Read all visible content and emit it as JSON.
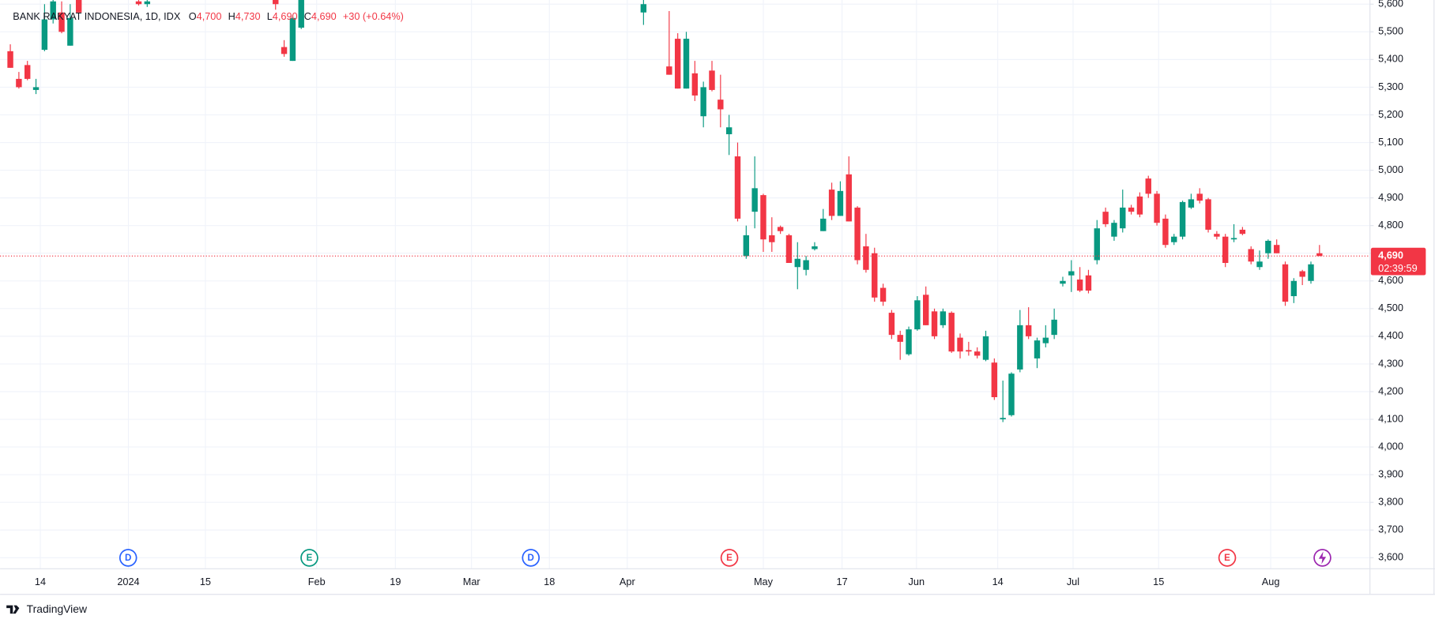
{
  "chart_data": {
    "type": "candlestick",
    "title": "BANK RAKYAT INDONESIA, 1D, IDX",
    "ohlc_legend": [
      {
        "key": "O",
        "value": "4,700"
      },
      {
        "key": "H",
        "value": "4,730"
      },
      {
        "key": "L",
        "value": "4,690"
      },
      {
        "key": "C",
        "value": "4,690"
      }
    ],
    "change": "+30 (+0.64%)",
    "up_color": "#089981",
    "down_color": "#f23645",
    "grid": true,
    "x": [
      0,
      1,
      2,
      3,
      4,
      5,
      6,
      7,
      8,
      15,
      16,
      31,
      32,
      33,
      34,
      74,
      77,
      78,
      79,
      80,
      81,
      82,
      83,
      84,
      85,
      86,
      87,
      88,
      89,
      90,
      91,
      92,
      93,
      94,
      95,
      96,
      97,
      98,
      99,
      100,
      101,
      102,
      103,
      104,
      105,
      106,
      107,
      108,
      109,
      110,
      111,
      112,
      113,
      114,
      115,
      116,
      117,
      118,
      119,
      120,
      121,
      122,
      123,
      124,
      125,
      126,
      127,
      128,
      129,
      130,
      131,
      132,
      133,
      134,
      135,
      136,
      137,
      138,
      139,
      140,
      141,
      142,
      143,
      144,
      145,
      146,
      147,
      148,
      149,
      150,
      151,
      152,
      153
    ],
    "open": [
      5430,
      5330,
      5380,
      5290,
      5435,
      5545,
      5570,
      5450,
      5640,
      5610,
      5600,
      5640,
      5445,
      5395,
      5515,
      5570,
      5375,
      5475,
      5295,
      5350,
      5195,
      5360,
      5255,
      5130,
      5050,
      4690,
      4850,
      4910,
      4765,
      4795,
      4765,
      4650,
      4640,
      4715,
      4780,
      4930,
      4835,
      4985,
      4865,
      4725,
      4700,
      4575,
      4485,
      4405,
      4335,
      4425,
      4550,
      4490,
      4440,
      4485,
      4395,
      4350,
      4345,
      4315,
      4305,
      4100,
      4115,
      4280,
      4440,
      4320,
      4375,
      4405,
      4590,
      4620,
      4605,
      4620,
      4675,
      4850,
      4760,
      4790,
      4865,
      4905,
      4970,
      4915,
      4825,
      4740,
      4760,
      4865,
      4915,
      4895,
      4770,
      4760,
      4750,
      4785,
      4715,
      4650,
      4700,
      4730,
      4660,
      4545,
      4635,
      4600,
      4700
    ],
    "high": [
      5455,
      5355,
      5395,
      5330,
      5600,
      5660,
      5610,
      5600,
      5660,
      5640,
      5630,
      5660,
      5470,
      5560,
      5640,
      5620,
      5575,
      5495,
      5500,
      5395,
      5320,
      5395,
      5345,
      5200,
      5100,
      4800,
      5050,
      4915,
      4830,
      4800,
      4770,
      4740,
      4690,
      4740,
      4860,
      4955,
      4960,
      5050,
      4870,
      4770,
      4720,
      4590,
      4495,
      4420,
      4435,
      4545,
      4580,
      4500,
      4500,
      4490,
      4410,
      4380,
      4360,
      4420,
      4320,
      4240,
      4270,
      4495,
      4505,
      4395,
      4440,
      4500,
      4615,
      4675,
      4650,
      4640,
      4820,
      4865,
      4820,
      4930,
      4875,
      4920,
      4980,
      4925,
      4840,
      4770,
      4890,
      4915,
      4935,
      4900,
      4780,
      4770,
      4805,
      4795,
      4725,
      4710,
      4750,
      4750,
      4670,
      4610,
      4640,
      4670,
      4730
    ],
    "low": [
      5370,
      5295,
      5325,
      5275,
      5430,
      5530,
      5495,
      5450,
      5570,
      5595,
      5590,
      5580,
      5410,
      5395,
      5510,
      5525,
      5345,
      5295,
      5295,
      5250,
      5155,
      5285,
      5155,
      5055,
      4815,
      4680,
      4790,
      4705,
      4705,
      4770,
      4665,
      4570,
      4620,
      4710,
      4780,
      4820,
      4835,
      4815,
      4660,
      4630,
      4525,
      4510,
      4390,
      4315,
      4330,
      4420,
      4440,
      4390,
      4430,
      4340,
      4320,
      4330,
      4320,
      4310,
      4170,
      4090,
      4110,
      4270,
      4390,
      4285,
      4360,
      4390,
      4580,
      4560,
      4560,
      4555,
      4660,
      4795,
      4745,
      4775,
      4840,
      4830,
      4900,
      4800,
      4720,
      4730,
      4750,
      4860,
      4880,
      4775,
      4750,
      4650,
      4740,
      4765,
      4660,
      4640,
      4680,
      4700,
      4510,
      4520,
      4585,
      4590,
      4690
    ],
    "close": [
      5370,
      5300,
      5330,
      5300,
      5545,
      5610,
      5500,
      5550,
      5570,
      5600,
      5610,
      5600,
      5420,
      5550,
      5620,
      5600,
      5345,
      5295,
      5475,
      5270,
      5300,
      5290,
      5220,
      5155,
      4825,
      4765,
      4935,
      4750,
      4740,
      4780,
      4665,
      4680,
      4675,
      4725,
      4825,
      4835,
      4925,
      4815,
      4675,
      4640,
      4540,
      4525,
      4405,
      4380,
      4425,
      4530,
      4440,
      4400,
      4490,
      4345,
      4345,
      4345,
      4330,
      4400,
      4180,
      4105,
      4265,
      4440,
      4400,
      4385,
      4395,
      4460,
      4600,
      4635,
      4565,
      4565,
      4790,
      4805,
      4810,
      4865,
      4850,
      4840,
      4915,
      4810,
      4730,
      4760,
      4885,
      4895,
      4890,
      4785,
      4760,
      4665,
      4755,
      4770,
      4670,
      4670,
      4745,
      4700,
      4525,
      4600,
      4615,
      4660,
      4690
    ],
    "xlim": [
      -1.2,
      158.9
    ],
    "xticks": [
      {
        "value": 3.5,
        "label": "14"
      },
      {
        "value": 13.8,
        "label": "2024"
      },
      {
        "value": 22.8,
        "label": "15"
      },
      {
        "value": 35.8,
        "label": "Feb"
      },
      {
        "value": 45.0,
        "label": "19"
      },
      {
        "value": 53.9,
        "label": "Mar"
      },
      {
        "value": 63.0,
        "label": "18"
      },
      {
        "value": 72.1,
        "label": "Apr"
      },
      {
        "value": 88.0,
        "label": "May"
      },
      {
        "value": 97.2,
        "label": "17"
      },
      {
        "value": 105.9,
        "label": "Jun"
      },
      {
        "value": 115.4,
        "label": "14"
      },
      {
        "value": 124.2,
        "label": "Jul"
      },
      {
        "value": 134.2,
        "label": "15"
      },
      {
        "value": 147.3,
        "label": "Aug"
      }
    ],
    "ylim": [
      3560,
      5615
    ],
    "yticks": [
      {
        "value": 3600,
        "label": "3,600"
      },
      {
        "value": 3700,
        "label": "3,700"
      },
      {
        "value": 3800,
        "label": "3,800"
      },
      {
        "value": 3900,
        "label": "3,900"
      },
      {
        "value": 4000,
        "label": "4,000"
      },
      {
        "value": 4100,
        "label": "4,100"
      },
      {
        "value": 4200,
        "label": "4,200"
      },
      {
        "value": 4300,
        "label": "4,300"
      },
      {
        "value": 4400,
        "label": "4,400"
      },
      {
        "value": 4500,
        "label": "4,500"
      },
      {
        "value": 4600,
        "label": "4,600"
      },
      {
        "value": 4700,
        "label": "4,700"
      },
      {
        "value": 4800,
        "label": "4,800"
      },
      {
        "value": 4900,
        "label": "4,900"
      },
      {
        "value": 5000,
        "label": "5,000"
      },
      {
        "value": 5100,
        "label": "5,100"
      },
      {
        "value": 5200,
        "label": "5,200"
      },
      {
        "value": 5300,
        "label": "5,300"
      },
      {
        "value": 5400,
        "label": "5,400"
      },
      {
        "value": 5500,
        "label": "5,500"
      },
      {
        "value": 5600,
        "label": "5,600"
      }
    ],
    "last_price": {
      "value": 4690,
      "label": "4,690"
    },
    "countdown": "02:39:59",
    "events": [
      {
        "label": "D",
        "color": "#2962ff"
      },
      {
        "label": "E",
        "color": "#089981"
      },
      {
        "label": "D",
        "color": "#2962ff"
      },
      {
        "label": "E",
        "color": "#f23645"
      },
      {
        "label": "E",
        "color": "#f23645"
      }
    ],
    "branding": "TradingView"
  }
}
